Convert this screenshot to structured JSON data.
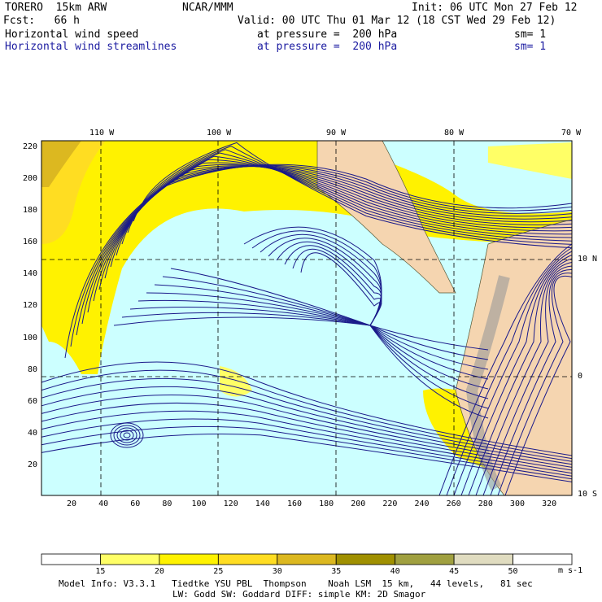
{
  "header": {
    "model": "TORERO  15km ARW",
    "org": "NCAR/MMM",
    "init": "Init: 06 UTC Mon 27 Feb 12",
    "fcst": "Fcst:   66 h",
    "valid": "Valid: 00 UTC Thu 01 Mar 12 (18 CST Wed 29 Feb 12)",
    "field1": "Horizontal wind speed",
    "level1": "at pressure =  200 hPa",
    "sm1": "sm= 1",
    "field2": "Horizontal wind streamlines",
    "level2": "at pressure =  200 hPa",
    "sm2": "sm= 1"
  },
  "axes": {
    "top": [
      "110 W",
      "100 W",
      "90 W",
      "80 W",
      "70 W"
    ],
    "right": [
      "10 N",
      "0",
      "10 S"
    ],
    "left": [
      "20",
      "40",
      "60",
      "80",
      "100",
      "120",
      "140",
      "160",
      "180",
      "200",
      "220"
    ],
    "bottom": [
      "20",
      "40",
      "60",
      "80",
      "100",
      "120",
      "140",
      "160",
      "180",
      "200",
      "220",
      "240",
      "260",
      "280",
      "300",
      "320"
    ]
  },
  "colorbar": {
    "labels": [
      "15",
      "20",
      "25",
      "30",
      "35",
      "40",
      "45",
      "50"
    ],
    "units": "m s-1",
    "colors": [
      "#ffffff",
      "#ffff66",
      "#fff200",
      "#ffdd22",
      "#dcb820",
      "#a09000",
      "#a0a040",
      "#e0dcc0",
      "#ffffff"
    ]
  },
  "footer": {
    "line1": "Model Info: V3.3.1   Tiedtke YSU PBL  Thompson    Noah LSM  15 km,   44 levels,   81 sec",
    "line2": "LW: Godd SW: Goddard DIFF: simple KM: 2D Smagor"
  },
  "colors": {
    "ocean": "#ccffff",
    "land": "#f5d5b0",
    "stream": "#1a1a8a"
  }
}
